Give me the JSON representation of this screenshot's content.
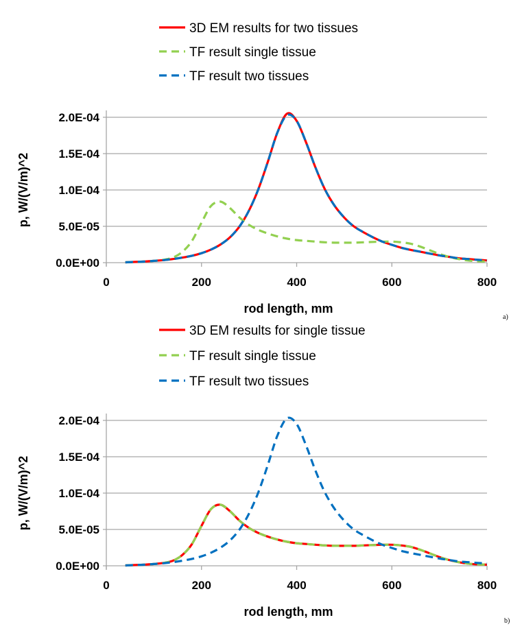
{
  "colors": {
    "red": "#ff0000",
    "green": "#92d050",
    "blue": "#0070c0",
    "grid": "#a6a6a6"
  },
  "chart_data": [
    {
      "type": "line",
      "panel_label": "a)",
      "xlabel": "rod length, mm",
      "ylabel": "p, W/(V/m)^2",
      "xlim": [
        0,
        800
      ],
      "ylim": [
        0,
        0.0002
      ],
      "x_ticks": [
        "0",
        "200",
        "400",
        "600",
        "800"
      ],
      "y_ticks": [
        "0.0E+00",
        "5.0E-05",
        "1.0E-04",
        "1.5E-04",
        "2.0E-04"
      ],
      "grid": true,
      "legend_position": "top",
      "x": [
        40,
        60,
        80,
        100,
        120,
        140,
        160,
        180,
        200,
        220,
        240,
        260,
        280,
        300,
        320,
        340,
        360,
        380,
        400,
        420,
        440,
        460,
        480,
        500,
        520,
        540,
        560,
        580,
        600,
        620,
        640,
        660,
        680,
        700,
        720,
        740,
        760,
        780,
        800
      ],
      "series": [
        {
          "name": "3D EM results for two tissues",
          "style": "solid",
          "color": "red",
          "values_e5": [
            0.05,
            0.1,
            0.15,
            0.25,
            0.35,
            0.5,
            0.7,
            0.95,
            1.3,
            1.8,
            2.5,
            3.5,
            5.0,
            7.2,
            10.2,
            14.0,
            18.0,
            20.5,
            19.5,
            16.5,
            13.0,
            10.0,
            7.8,
            6.2,
            5.0,
            4.2,
            3.5,
            2.9,
            2.45,
            2.05,
            1.75,
            1.5,
            1.25,
            1.0,
            0.8,
            0.6,
            0.5,
            0.4,
            0.3
          ]
        },
        {
          "name": "TF result single tissue",
          "style": "dashed",
          "color": "green",
          "values_e5": [
            0.05,
            0.1,
            0.15,
            0.25,
            0.4,
            0.7,
            1.5,
            3.0,
            5.5,
            7.8,
            8.4,
            7.5,
            6.2,
            5.2,
            4.5,
            4.0,
            3.6,
            3.3,
            3.1,
            3.0,
            2.9,
            2.8,
            2.75,
            2.75,
            2.75,
            2.8,
            2.85,
            2.9,
            2.9,
            2.8,
            2.6,
            2.2,
            1.7,
            1.2,
            0.8,
            0.5,
            0.3,
            0.2,
            0.15
          ]
        },
        {
          "name": "TF result two tissues",
          "style": "dashed",
          "color": "blue",
          "values_e5": [
            0.05,
            0.1,
            0.15,
            0.25,
            0.35,
            0.5,
            0.7,
            0.95,
            1.3,
            1.8,
            2.5,
            3.5,
            5.0,
            7.2,
            10.2,
            14.0,
            18.0,
            20.3,
            19.5,
            16.5,
            13.0,
            10.0,
            7.8,
            6.2,
            5.0,
            4.2,
            3.5,
            2.9,
            2.45,
            2.05,
            1.75,
            1.5,
            1.25,
            1.0,
            0.8,
            0.6,
            0.5,
            0.4,
            0.3
          ]
        }
      ]
    },
    {
      "type": "line",
      "panel_label": "b)",
      "xlabel": "rod length, mm",
      "ylabel": "p, W/(V/m)^2",
      "xlim": [
        0,
        800
      ],
      "ylim": [
        0,
        0.0002
      ],
      "x_ticks": [
        "0",
        "200",
        "400",
        "600",
        "800"
      ],
      "y_ticks": [
        "0.0E+00",
        "5.0E-05",
        "1.0E-04",
        "1.5E-04",
        "2.0E-04"
      ],
      "grid": true,
      "legend_position": "top",
      "x": [
        40,
        60,
        80,
        100,
        120,
        140,
        160,
        180,
        200,
        220,
        240,
        260,
        280,
        300,
        320,
        340,
        360,
        380,
        400,
        420,
        440,
        460,
        480,
        500,
        520,
        540,
        560,
        580,
        600,
        620,
        640,
        660,
        680,
        700,
        720,
        740,
        760,
        780,
        800
      ],
      "series": [
        {
          "name": "3D EM results for single tissue",
          "style": "solid",
          "color": "red",
          "values_e5": [
            0.05,
            0.1,
            0.15,
            0.25,
            0.4,
            0.7,
            1.5,
            3.0,
            5.5,
            7.8,
            8.4,
            7.5,
            6.2,
            5.2,
            4.5,
            4.0,
            3.6,
            3.3,
            3.1,
            3.0,
            2.9,
            2.8,
            2.75,
            2.75,
            2.75,
            2.8,
            2.85,
            2.9,
            2.9,
            2.8,
            2.6,
            2.2,
            1.7,
            1.2,
            0.8,
            0.5,
            0.3,
            0.2,
            0.15
          ]
        },
        {
          "name": "TF result single tissue",
          "style": "dashed",
          "color": "green",
          "values_e5": [
            0.05,
            0.1,
            0.15,
            0.25,
            0.4,
            0.7,
            1.5,
            3.0,
            5.5,
            7.8,
            8.4,
            7.5,
            6.2,
            5.2,
            4.5,
            4.0,
            3.6,
            3.3,
            3.1,
            3.0,
            2.9,
            2.8,
            2.75,
            2.75,
            2.75,
            2.8,
            2.85,
            2.9,
            2.9,
            2.8,
            2.6,
            2.2,
            1.7,
            1.2,
            0.8,
            0.5,
            0.3,
            0.2,
            0.15
          ]
        },
        {
          "name": "TF result two tissues",
          "style": "dashed",
          "color": "blue",
          "values_e5": [
            0.05,
            0.1,
            0.15,
            0.25,
            0.35,
            0.5,
            0.7,
            0.95,
            1.3,
            1.8,
            2.5,
            3.5,
            5.0,
            7.2,
            10.2,
            14.0,
            18.0,
            20.3,
            19.5,
            16.5,
            13.0,
            10.0,
            7.8,
            6.2,
            5.0,
            4.2,
            3.5,
            2.9,
            2.45,
            2.05,
            1.75,
            1.5,
            1.25,
            1.0,
            0.8,
            0.6,
            0.5,
            0.4,
            0.3
          ]
        }
      ]
    }
  ]
}
